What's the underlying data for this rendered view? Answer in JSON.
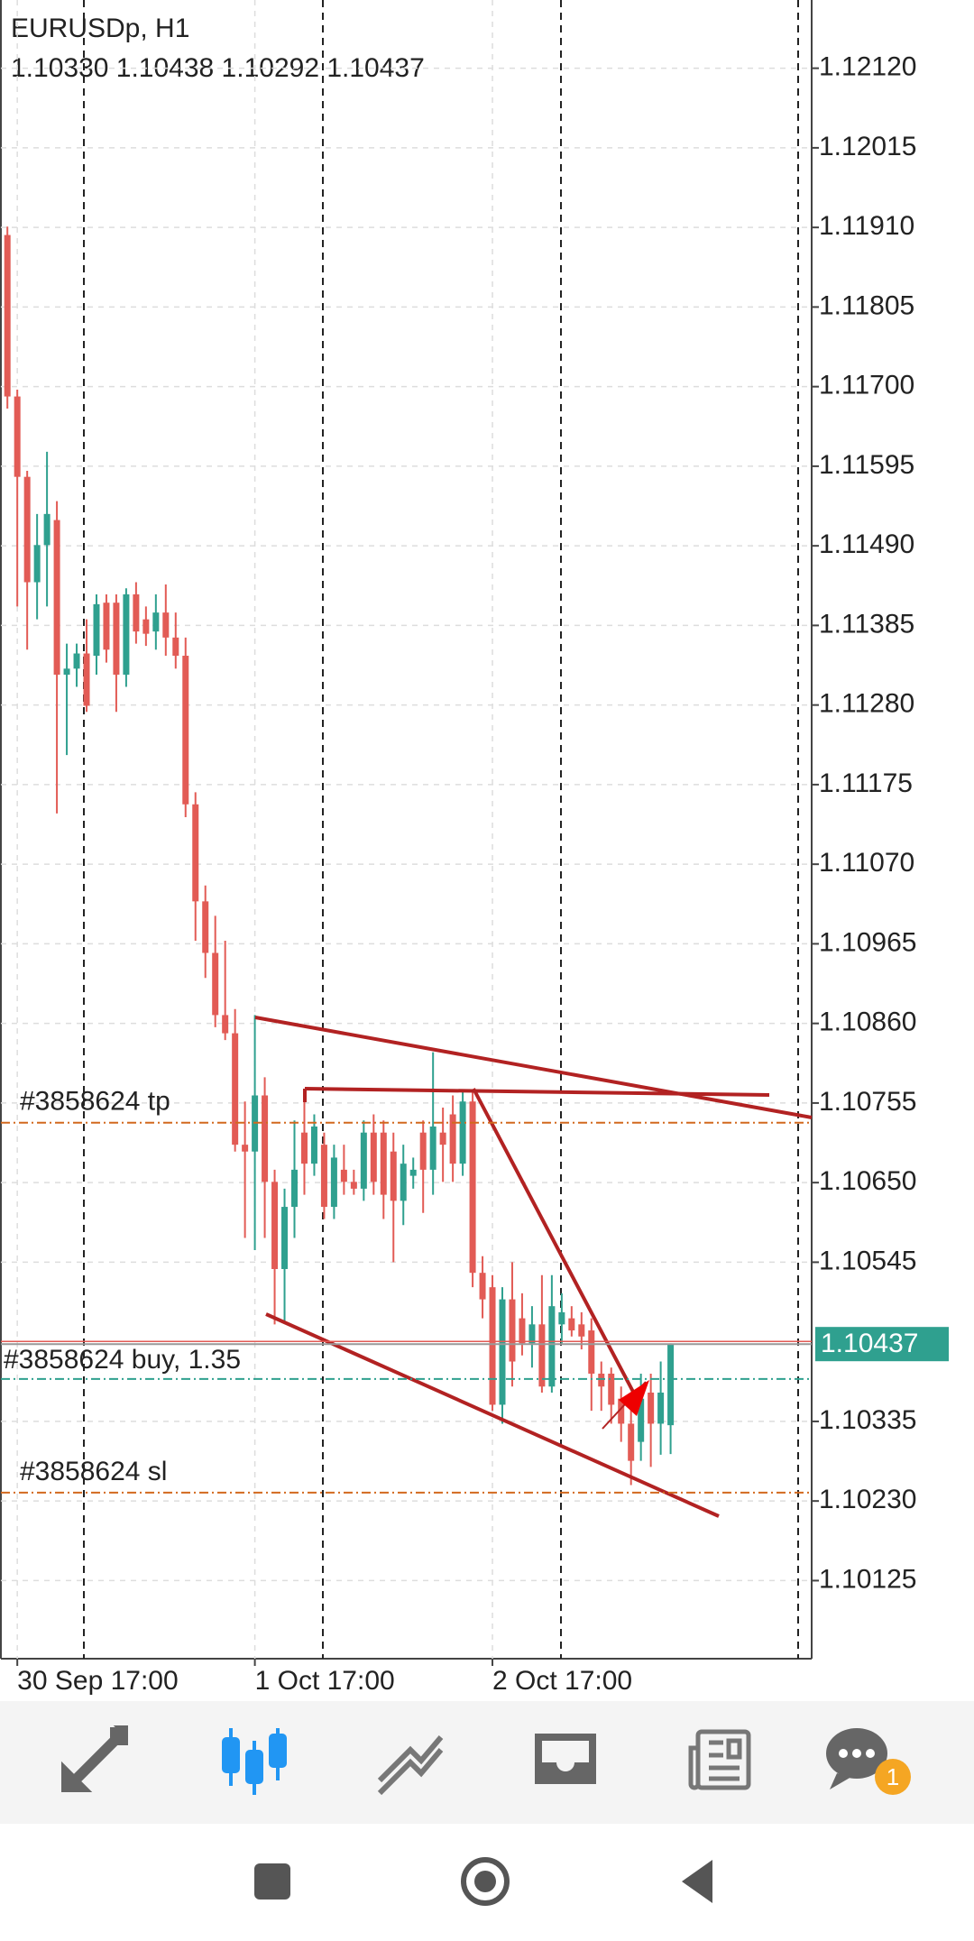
{
  "chart_data": {
    "type": "candlestick",
    "title": "EURUSDp, H1",
    "ohlc_label": "1.10330 1.10438 1.10292 1.10437",
    "up_color": "#2fa08f",
    "down_color": "#e25b55",
    "grid": true,
    "categories": [
      null,
      "30 Sep 17:00",
      null,
      null,
      null,
      null,
      null,
      null,
      null,
      null,
      null,
      null,
      null,
      null,
      null,
      null,
      null,
      null,
      null,
      null,
      null,
      null,
      null,
      null,
      null,
      "1 Oct 17:00",
      null,
      null,
      null,
      null,
      null,
      null,
      null,
      null,
      null,
      null,
      null,
      null,
      null,
      null,
      null,
      null,
      null,
      null,
      null,
      null,
      null,
      null,
      null,
      "2 Oct 17:00",
      null,
      null,
      null,
      null,
      null,
      null,
      null,
      null,
      null,
      null,
      null,
      null,
      null,
      null,
      null,
      null,
      null,
      null
    ],
    "open": [
      1.119,
      1.11687,
      1.11581,
      1.11442,
      1.11491,
      1.11524,
      1.1132,
      1.11328,
      1.11348,
      1.11345,
      1.11415,
      1.11415,
      1.1132,
      1.11426,
      1.11393,
      1.11377,
      1.11402,
      1.11369,
      1.11345,
      1.11149,
      1.11021,
      1.10953,
      1.10871,
      1.10847,
      1.107,
      1.10691,
      1.10765,
      1.10651,
      1.10536,
      1.10618,
      1.10716,
      1.10675,
      1.107,
      1.10618,
      1.10667,
      1.10651,
      1.10642,
      1.10716,
      1.10716,
      1.10691,
      1.10626,
      1.10659,
      1.10716,
      1.10667,
      1.10716,
      1.1074,
      1.10675,
      1.10757,
      1.10531,
      1.10512,
      1.10357,
      1.10496,
      1.10471,
      1.10438,
      1.10463,
      1.10381,
      1.10463,
      1.10471,
      1.10463,
      1.10455,
      1.10398,
      1.10398,
      1.10365,
      1.10332,
      1.10308,
      1.10373,
      1.10332,
      1.1033
    ],
    "high": [
      1.11911,
      1.11696,
      1.11589,
      1.11532,
      1.11614,
      1.11549,
      1.11361,
      1.11361,
      1.11393,
      1.11426,
      1.11426,
      1.11426,
      1.11434,
      1.11442,
      1.1141,
      1.11426,
      1.11439,
      1.11402,
      1.11369,
      1.11165,
      1.11042,
      1.11002,
      1.10969,
      1.10879,
      1.10757,
      1.10871,
      1.10789,
      1.10667,
      1.10642,
      1.10732,
      1.10773,
      1.1074,
      1.10716,
      1.107,
      1.107,
      1.10667,
      1.10732,
      1.1074,
      1.10732,
      1.10716,
      1.107,
      1.10683,
      1.10732,
      1.10822,
      1.10749,
      1.10765,
      1.10773,
      1.10773,
      1.10553,
      1.10528,
      1.10512,
      1.10545,
      1.10504,
      1.10487,
      1.10528,
      1.10528,
      1.10504,
      1.10487,
      1.10479,
      1.10471,
      1.10414,
      1.10406,
      1.10381,
      1.10365,
      1.10398,
      1.10398,
      1.10414,
      1.10438
    ],
    "low": [
      1.11671,
      1.1141,
      1.11353,
      1.11393,
      1.1141,
      1.11137,
      1.11214,
      1.11304,
      1.11271,
      1.1132,
      1.11336,
      1.11271,
      1.11304,
      1.11361,
      1.11358,
      1.11353,
      1.11345,
      1.11328,
      1.11132,
      1.10969,
      1.1092,
      1.10855,
      1.10838,
      1.10691,
      1.10577,
      1.10561,
      1.10577,
      1.10463,
      1.10466,
      1.10577,
      1.10634,
      1.10659,
      1.10602,
      1.10602,
      1.10634,
      1.10634,
      1.10626,
      1.10634,
      1.10602,
      1.10545,
      1.10594,
      1.10642,
      1.1061,
      1.10634,
      1.10651,
      1.10651,
      1.10659,
      1.10512,
      1.10471,
      1.10349,
      1.10332,
      1.10381,
      1.10422,
      1.10406,
      1.10373,
      1.10373,
      1.10438,
      1.10447,
      1.1043,
      1.10349,
      1.10349,
      1.10332,
      1.10308,
      1.10251,
      1.10283,
      1.10275,
      1.10291,
      1.10292
    ],
    "close": [
      1.11687,
      1.11581,
      1.11442,
      1.11491,
      1.11532,
      1.1132,
      1.11328,
      1.11348,
      1.11279,
      1.11413,
      1.11353,
      1.1132,
      1.11426,
      1.11377,
      1.11374,
      1.11402,
      1.11369,
      1.11345,
      1.11149,
      1.11021,
      1.10953,
      1.10871,
      1.10847,
      1.107,
      1.10691,
      1.10765,
      1.10651,
      1.10536,
      1.10618,
      1.10667,
      1.10675,
      1.10724,
      1.10618,
      1.10683,
      1.10651,
      1.10642,
      1.10716,
      1.10651,
      1.10634,
      1.10626,
      1.10675,
      1.10667,
      1.10667,
      1.10724,
      1.107,
      1.10675,
      1.10757,
      1.10531,
      1.10496,
      1.10357,
      1.10496,
      1.10414,
      1.10438,
      1.10463,
      1.10381,
      1.10487,
      1.10479,
      1.10455,
      1.10447,
      1.10398,
      1.10381,
      1.10357,
      1.10332,
      1.10283,
      1.10365,
      1.10332,
      1.10373,
      1.10437
    ],
    "ylim": [
      1.10022,
      1.1221
    ],
    "yticks": [
      {
        "value": 1.1212,
        "label": "1.12120"
      },
      1.12015,
      {
        "value": 1.1191,
        "label": "1.11910"
      },
      1.11805,
      {
        "value": 1.117,
        "label": "1.11700"
      },
      1.11595,
      {
        "value": 1.1149,
        "label": "1.11490"
      },
      1.11385,
      {
        "value": 1.1128,
        "label": "1.11280"
      },
      1.11175,
      {
        "value": 1.1107,
        "label": "1.11070"
      },
      1.10965,
      {
        "value": 1.1086,
        "label": "1.10860"
      },
      1.10755,
      {
        "value": 1.1065,
        "label": "1.10650"
      },
      1.10545,
      1.10335,
      {
        "value": 1.1023,
        "label": "1.10230"
      },
      1.10125
    ],
    "current_price": 1.10437,
    "levels": [
      {
        "label": "#3858624 tp",
        "price": 1.10729,
        "color": "#d2691e"
      },
      {
        "label": "#3858624 buy, 1.35",
        "price": 1.10391,
        "color": "#2fa08f"
      },
      {
        "label": "#3858624 sl",
        "price": 1.10241,
        "color": "#d2691e"
      }
    ]
  },
  "toolbar": {
    "chat_badge": "1"
  }
}
